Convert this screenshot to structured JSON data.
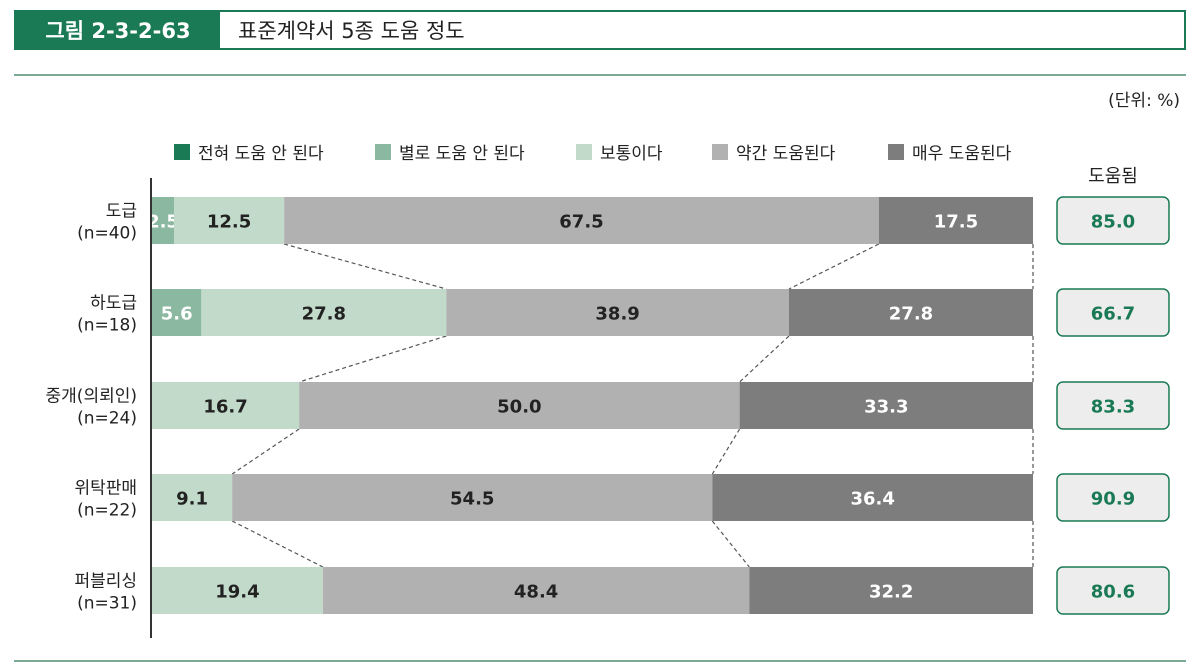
{
  "figure": {
    "label": "그림 2-3-2-63",
    "title": "표준계약서 5종 도움 정도",
    "unit": "(단위: %)"
  },
  "colors": {
    "brand": "#1a7a55",
    "series": [
      "#1a7a55",
      "#8bb8a1",
      "#c2dac9",
      "#b1b1b1",
      "#7d7d7d"
    ],
    "label_text": [
      "#ffffff",
      "#ffffff",
      "#222222",
      "#222222",
      "#ffffff"
    ]
  },
  "chart_data": {
    "type": "bar",
    "orientation": "horizontal-stacked-100",
    "categories": [
      [
        "도급",
        "(n=40)"
      ],
      [
        "하도급",
        "(n=18)"
      ],
      [
        "중개(의뢰인)",
        "(n=24)"
      ],
      [
        "위탁판매",
        "(n=22)"
      ],
      [
        "퍼블리싱",
        "(n=31)"
      ]
    ],
    "series": [
      {
        "name": "전혀 도움 안 된다",
        "values": [
          0,
          0,
          0,
          0,
          0
        ]
      },
      {
        "name": "별로 도움 안 된다",
        "values": [
          2.5,
          5.6,
          0,
          0,
          0
        ]
      },
      {
        "name": "보통이다",
        "values": [
          12.5,
          27.8,
          16.7,
          9.1,
          19.4
        ]
      },
      {
        "name": "약간 도움된다",
        "values": [
          67.5,
          38.9,
          50.0,
          54.5,
          48.4
        ]
      },
      {
        "name": "매우 도움된다",
        "values": [
          17.5,
          27.8,
          33.3,
          36.4,
          32.2
        ]
      }
    ],
    "summary": {
      "header": "도움됨",
      "values": [
        "85.0",
        "66.7",
        "83.3",
        "90.9",
        "80.6"
      ]
    },
    "xlim": [
      0,
      100
    ],
    "legend_position": "top",
    "connector_lines": true
  }
}
